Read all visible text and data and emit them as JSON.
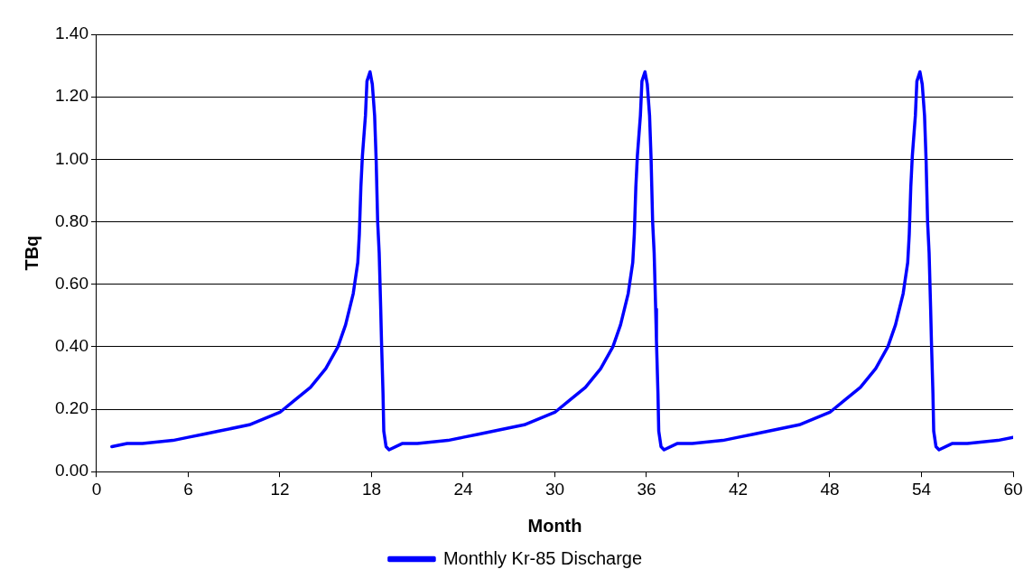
{
  "chart_data": {
    "type": "line",
    "xlabel": "Month",
    "ylabel": "TBq",
    "xlim": [
      0,
      60
    ],
    "xticks": [
      0,
      6,
      12,
      18,
      24,
      30,
      36,
      42,
      48,
      54,
      60
    ],
    "ylim": [
      0,
      1.4
    ],
    "yticks": [
      {
        "value": 0,
        "label": "0.00"
      },
      {
        "value": 0.2,
        "label": "0.20"
      },
      {
        "value": 0.4,
        "label": "0.40"
      },
      {
        "value": 0.6,
        "label": "0.60"
      },
      {
        "value": 0.8,
        "label": "0.80"
      },
      {
        "value": 1.0,
        "label": "1.00"
      },
      {
        "value": 1.2,
        "label": "1.20"
      },
      {
        "value": 1.4,
        "label": "1.40"
      }
    ],
    "grid": "y",
    "legend": "bottom",
    "marker": "none",
    "line_style": "solid",
    "series": [
      {
        "name": "Monthly Kr-85 Discharge",
        "color": "#0000ff",
        "x": [
          1,
          2,
          3,
          5,
          6,
          7,
          8,
          10,
          11,
          12,
          13,
          14,
          15,
          15.8,
          16.3,
          16.8,
          17.1,
          17.2,
          17.3,
          17.4,
          17.6,
          17.7,
          17.9,
          18.05,
          18.2,
          18.3,
          18.4,
          18.5,
          18.6,
          18.65,
          18.75,
          18.8,
          18.95,
          19.15,
          20,
          21,
          23,
          24,
          25,
          26,
          28,
          29,
          30,
          31,
          32,
          33,
          33.8,
          34.3,
          34.8,
          35.1,
          35.2,
          35.3,
          35.4,
          35.6,
          35.7,
          35.9,
          36.05,
          36.2,
          36.3,
          36.4,
          36.5,
          36.6,
          36.65,
          36.75,
          36.8,
          36.95,
          37.15,
          38,
          39,
          41,
          42,
          43,
          44,
          46,
          47,
          48,
          49,
          50,
          51,
          51.8,
          52.3,
          52.8,
          53.1,
          53.2,
          53.3,
          53.4,
          53.6,
          53.7,
          53.9,
          54.05,
          54.2,
          54.3,
          54.4,
          54.5,
          54.6,
          54.65,
          54.75,
          54.8,
          54.95,
          55.15,
          56,
          57,
          59,
          60
        ],
        "values": [
          0.08,
          0.09,
          0.09,
          0.1,
          0.11,
          0.12,
          0.13,
          0.15,
          0.17,
          0.19,
          0.23,
          0.27,
          0.33,
          0.4,
          0.47,
          0.57,
          0.67,
          0.76,
          0.91,
          1.01,
          1.14,
          1.25,
          1.28,
          1.24,
          1.14,
          1.0,
          0.8,
          0.7,
          0.52,
          0.42,
          0.25,
          0.13,
          0.08,
          0.07,
          0.09,
          0.09,
          0.1,
          0.11,
          0.12,
          0.13,
          0.15,
          0.17,
          0.19,
          0.23,
          0.27,
          0.33,
          0.4,
          0.47,
          0.57,
          0.67,
          0.76,
          0.91,
          1.01,
          1.14,
          1.25,
          1.28,
          1.24,
          1.14,
          1.0,
          0.8,
          0.7,
          0.52,
          0.42,
          0.25,
          0.13,
          0.08,
          0.07,
          0.09,
          0.09,
          0.1,
          0.11,
          0.12,
          0.13,
          0.15,
          0.17,
          0.19,
          0.23,
          0.27,
          0.33,
          0.4,
          0.47,
          0.57,
          0.67,
          0.76,
          0.91,
          1.01,
          1.14,
          1.25,
          1.28,
          1.24,
          1.14,
          1.0,
          0.8,
          0.7,
          0.52,
          0.42,
          0.25,
          0.13,
          0.08,
          0.07,
          0.09,
          0.09,
          0.1,
          0.11
        ]
      }
    ]
  }
}
